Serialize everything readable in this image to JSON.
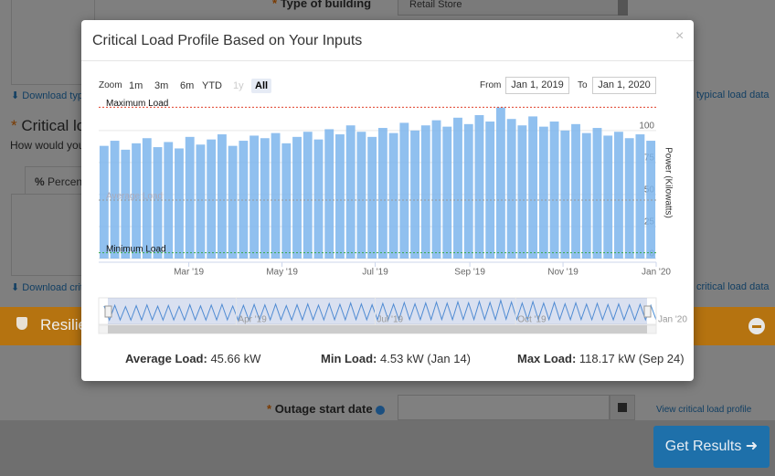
{
  "background": {
    "required_mark": "*",
    "building_label": "Type of building",
    "building_value": "Retail Store",
    "download_typical": "Download typi",
    "typical_link": "typical load data",
    "critical_heading": "Critical lo",
    "critical_question": "How would you",
    "tab": "Percen",
    "tab_icon": "%",
    "download_critical": "Download criti",
    "critical_link": "critical load data",
    "resilience": "Resilie",
    "outage_label": "Outage start date",
    "view_profile": "View critical load profile",
    "get_results": "Get Results"
  },
  "modal": {
    "title": "Critical Load Profile Based on Your Inputs",
    "close": "×",
    "zoom_label": "Zoom",
    "zoom_buttons": [
      "1m",
      "3m",
      "6m",
      "YTD",
      "1y",
      "All"
    ],
    "from_label": "From",
    "from_date": "Jan 1, 2019",
    "to_label": "To",
    "to_date": "Jan 1, 2020",
    "chart_data": {
      "type": "bar",
      "y_axis_title": "Power (Kilowatts)",
      "color": "#7cb5ec",
      "grid": true,
      "xlim": [
        "2019-01-01",
        "2020-01-01"
      ],
      "ylim": [
        0,
        122
      ],
      "yticks": [
        0,
        25,
        50,
        75,
        100
      ],
      "xticks": [
        {
          "value": "2019-03",
          "label": "Mar '19"
        },
        {
          "value": "2019-05",
          "label": "May '19"
        },
        {
          "value": "2019-07",
          "label": "Jul '19"
        },
        {
          "value": "2019-09",
          "label": "Sep '19"
        },
        {
          "value": "2019-11",
          "label": "Nov '19"
        },
        {
          "value": "2020-01",
          "label": "Jan '20"
        }
      ],
      "navigator_ticks": [
        {
          "value": "2019-04",
          "label": "Apr '19"
        },
        {
          "value": "2019-07",
          "label": "Jul '19"
        },
        {
          "value": "2019-10",
          "label": "Oct '19"
        },
        {
          "value": "2020-01",
          "label": "Jan '20"
        }
      ],
      "plot_lines": [
        {
          "label": "Maximum Load",
          "value": 118.17,
          "color": "#e0402a"
        },
        {
          "label": "Average Load",
          "value": 45.66,
          "color": "#999999"
        },
        {
          "label": "Minimum Load",
          "value": 4.53,
          "color": "#3aa845"
        }
      ],
      "values": [
        88,
        92,
        85,
        90,
        94,
        87,
        91,
        86,
        95,
        89,
        93,
        97,
        88,
        92,
        96,
        94,
        98,
        90,
        95,
        99,
        93,
        101,
        97,
        104,
        99,
        95,
        102,
        98,
        106,
        100,
        104,
        108,
        103,
        110,
        105,
        112,
        107,
        118,
        109,
        104,
        111,
        103,
        107,
        100,
        105,
        98,
        102,
        96,
        99,
        94,
        97,
        92
      ]
    },
    "stats": [
      {
        "label": "Average Load:",
        "value": "45.66 kW"
      },
      {
        "label": "Min Load:",
        "value": "4.53 kW (Jan 14)"
      },
      {
        "label": "Max Load:",
        "value": "118.17 kW (Sep 24)"
      }
    ]
  }
}
